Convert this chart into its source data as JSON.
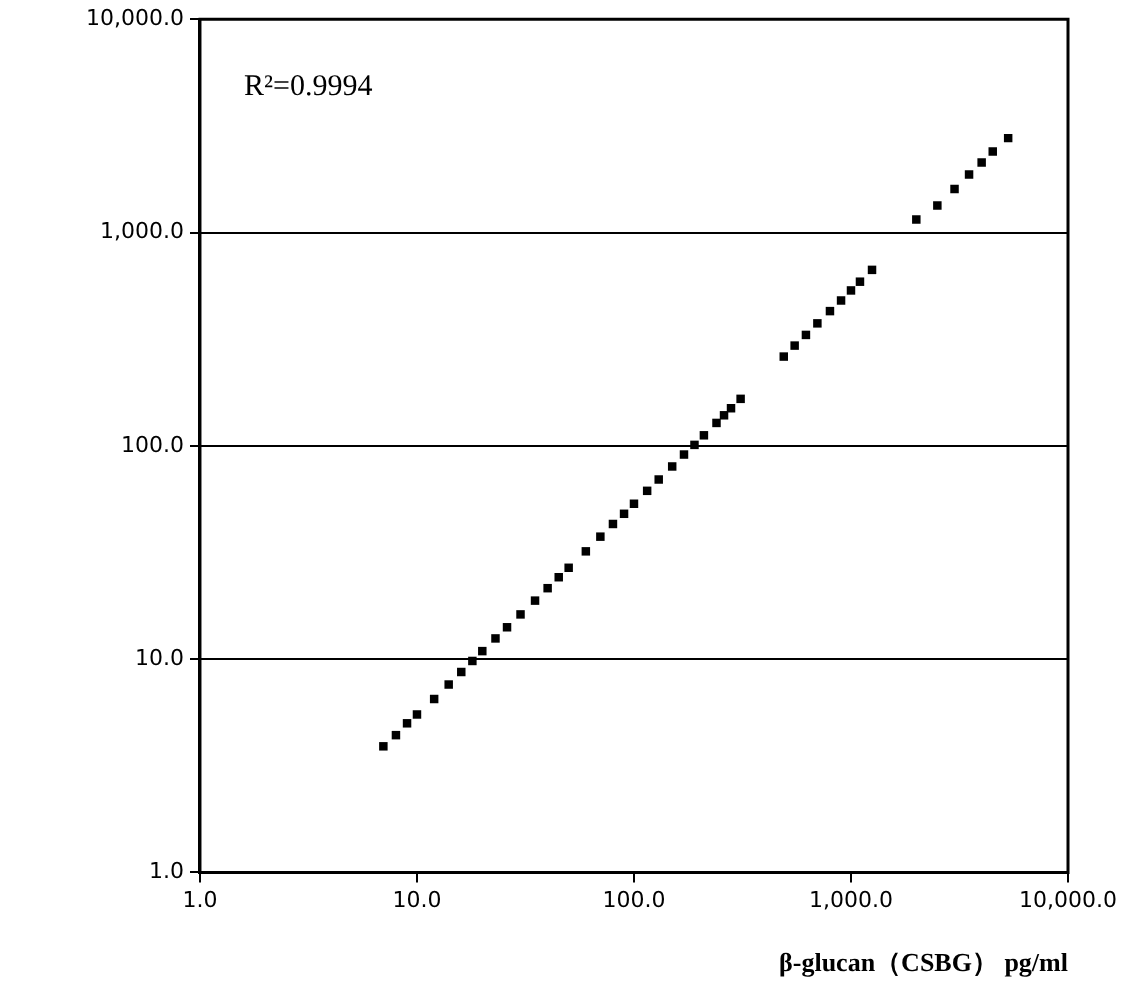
{
  "chart_data": {
    "type": "scatter",
    "xlabel": "β-glucan（CSBG） pg/ml",
    "annotations": [
      "R²=0.9994"
    ],
    "log": "xy",
    "grid": "y",
    "marker": "square",
    "xlim": [
      1,
      10000
    ],
    "ylim": [
      1,
      10000
    ],
    "xticks": [
      {
        "value": 1,
        "label": "1.0"
      },
      {
        "value": 10,
        "label": "10.0"
      },
      {
        "value": 100,
        "label": "100.0"
      },
      {
        "value": 1000,
        "label": "1,000.0"
      },
      {
        "value": 10000,
        "label": "10,000.0"
      }
    ],
    "yticks": [
      {
        "value": 1,
        "label": "1.0"
      },
      {
        "value": 10,
        "label": "10.0"
      },
      {
        "value": 100,
        "label": "100.0"
      },
      {
        "value": 1000,
        "label": "1,000.0"
      },
      {
        "value": 10000,
        "label": "10,000.0"
      }
    ],
    "series": [
      {
        "color": "#000000",
        "x": [
          7,
          8,
          9,
          10,
          12,
          14,
          16,
          18,
          20,
          23,
          26,
          30,
          35,
          40,
          45,
          50,
          60,
          70,
          80,
          90,
          100,
          115,
          130,
          150,
          170,
          190,
          210,
          240,
          260,
          280,
          310,
          490,
          550,
          620,
          700,
          800,
          900,
          1000,
          1100,
          1250,
          2000,
          2500,
          3000,
          3500,
          4000,
          4500,
          5300
        ],
        "values": [
          3.9,
          4.4,
          5.0,
          5.5,
          6.5,
          7.6,
          8.7,
          9.8,
          10.9,
          12.5,
          14.1,
          16.2,
          18.8,
          21.5,
          24.2,
          26.8,
          32,
          37.5,
          43,
          48,
          53.5,
          61.5,
          69.5,
          80,
          91,
          101,
          112,
          128,
          139,
          150,
          166,
          262,
          295,
          331,
          375,
          428,
          480,
          535,
          588,
          668,
          1150,
          1340,
          1600,
          1870,
          2130,
          2400,
          2770
        ]
      }
    ]
  }
}
